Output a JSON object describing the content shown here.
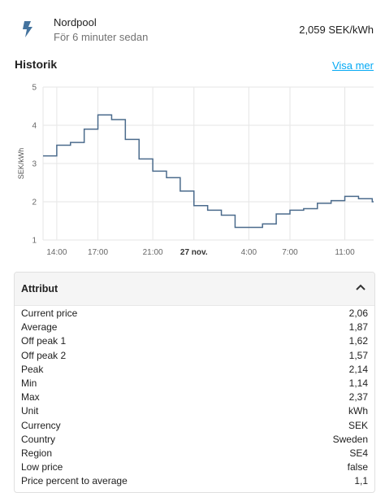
{
  "entity": {
    "name": "Nordpool",
    "last_changed": "För 6 minuter sedan",
    "state": "2,059 SEK/kWh",
    "icon": "flash-icon"
  },
  "history": {
    "title": "Historik",
    "more_link": "Visa mer"
  },
  "chart_data": {
    "type": "line",
    "step": true,
    "ylabel": "SEK/kWh",
    "ylim": [
      1,
      5
    ],
    "yticks": [
      "1",
      "2",
      "3",
      "4",
      "5"
    ],
    "xticks": [
      "14:00",
      "17:00",
      "21:00",
      "27 nov.",
      "4:00",
      "7:00",
      "11:00"
    ],
    "xtick_hours": [
      14,
      17,
      21,
      24,
      28,
      31,
      35
    ],
    "color": "#4b6b8c",
    "series": [
      {
        "x": [
          13,
          14,
          15,
          16,
          17,
          18,
          19,
          20,
          21,
          22,
          23,
          24,
          25,
          26,
          27,
          28,
          29,
          30,
          31,
          32,
          33,
          34,
          35,
          36,
          37
        ],
        "values": [
          3.2,
          3.48,
          3.55,
          3.9,
          4.27,
          4.15,
          3.63,
          3.12,
          2.8,
          2.63,
          2.28,
          1.9,
          1.78,
          1.65,
          1.33,
          1.33,
          1.42,
          1.68,
          1.78,
          1.82,
          1.96,
          2.03,
          2.14,
          2.08,
          2.0
        ]
      }
    ]
  },
  "attributes": {
    "title": "Attribut",
    "rows": [
      {
        "key": "Current price",
        "value": "2,06"
      },
      {
        "key": "Average",
        "value": "1,87"
      },
      {
        "key": "Off peak 1",
        "value": "1,62"
      },
      {
        "key": "Off peak 2",
        "value": "1,57"
      },
      {
        "key": "Peak",
        "value": "2,14"
      },
      {
        "key": "Min",
        "value": "1,14"
      },
      {
        "key": "Max",
        "value": "2,37"
      },
      {
        "key": "Unit",
        "value": "kWh"
      },
      {
        "key": "Currency",
        "value": "SEK"
      },
      {
        "key": "Country",
        "value": "Sweden"
      },
      {
        "key": "Region",
        "value": "SE4"
      },
      {
        "key": "Low price",
        "value": "false"
      },
      {
        "key": "Price percent to average",
        "value": "1,1"
      }
    ]
  }
}
